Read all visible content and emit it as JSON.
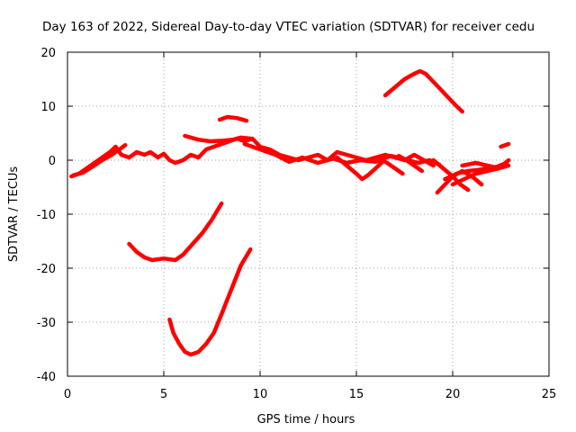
{
  "chart_data": {
    "type": "line",
    "title": "Day 163 of 2022, Sidereal Day-to-day VTEC variation (SDTVAR) for receiver cedu",
    "xlabel": "GPS time / hours",
    "ylabel": "SDTVAR / TECUs",
    "xlim": [
      0,
      25
    ],
    "ylim": [
      -40,
      20
    ],
    "x_ticks": [
      "0",
      "5",
      "10",
      "15",
      "20",
      "25"
    ],
    "y_ticks": [
      "-40",
      "-30",
      "-20",
      "-10",
      "0",
      "10",
      "20"
    ],
    "grid": true,
    "series_color": "#ff0000",
    "series": [
      {
        "name": "track-main-1",
        "x": [
          0.2,
          0.6,
          1.0,
          1.4,
          1.8,
          2.2,
          2.5,
          2.8,
          3.2,
          3.6,
          4.0,
          4.3,
          4.7,
          5.0,
          5.3,
          5.6,
          6.0,
          6.4,
          6.8,
          7.2,
          7.6,
          8.0,
          8.4,
          8.8,
          9.2,
          9.6,
          10.0,
          10.5,
          11.0,
          11.5,
          12.0,
          12.5,
          13.0,
          13.5,
          14.0,
          14.5,
          15.0,
          15.5,
          16.0,
          16.5,
          17.0,
          17.5,
          18.0,
          18.5,
          19.0
        ],
        "y": [
          -3,
          -2.5,
          -1.5,
          -0.5,
          0.5,
          1.5,
          2.5,
          1,
          0.5,
          1.5,
          1.0,
          1.5,
          0.5,
          1.2,
          0,
          -0.5,
          0,
          1,
          0.5,
          2,
          2.5,
          3,
          3.5,
          4,
          3.5,
          4,
          2.5,
          2,
          1,
          0.5,
          0,
          0.5,
          1,
          0,
          1.5,
          1,
          0.5,
          0,
          0.5,
          1,
          0.5,
          0,
          1,
          0,
          -1
        ]
      },
      {
        "name": "track-main-2",
        "x": [
          0.3,
          0.8,
          1.3,
          1.8,
          2.3,
          2.7,
          3.0
        ],
        "y": [
          -2.8,
          -2.3,
          -1.2,
          0,
          1,
          2,
          2.8
        ]
      },
      {
        "name": "track-main-3",
        "x": [
          9.2,
          10.0,
          10.8,
          11.5,
          12.2,
          13.0,
          13.8,
          14.5,
          15.2,
          16.0,
          16.8,
          17.5,
          18.2,
          18.8,
          19.3
        ],
        "y": [
          3,
          2,
          1,
          -0.3,
          0.5,
          -0.5,
          0.3,
          -0.5,
          0,
          -0.3,
          0.8,
          0.2,
          -0.5,
          0,
          -0.8
        ]
      },
      {
        "name": "track-upper-1",
        "x": [
          6.1,
          6.8,
          7.4,
          8.0,
          8.6,
          9.0,
          9.5
        ],
        "y": [
          4.5,
          3.8,
          3.5,
          3.6,
          3.8,
          4.2,
          4.0
        ]
      },
      {
        "name": "track-upper-2",
        "x": [
          7.9,
          8.3,
          8.8,
          9.3
        ],
        "y": [
          7.5,
          8,
          7.8,
          7.3
        ]
      },
      {
        "name": "track-peak",
        "x": [
          16.5,
          17.0,
          17.5,
          18.0,
          18.3,
          18.6,
          19.0,
          19.4,
          19.8,
          20.2,
          20.5
        ],
        "y": [
          12,
          13.5,
          15,
          16,
          16.5,
          16,
          14.5,
          13,
          11.5,
          10,
          9
        ]
      },
      {
        "name": "track-right-1",
        "x": [
          14.0,
          14.5,
          15.0,
          15.3,
          15.6,
          16.0,
          16.3
        ],
        "y": [
          0.5,
          -1,
          -2.5,
          -3.5,
          -2.8,
          -1.5,
          -0.5
        ]
      },
      {
        "name": "track-right-2",
        "x": [
          16.3,
          16.6,
          17.0,
          17.4
        ],
        "y": [
          0,
          -0.5,
          -1.5,
          -2.5
        ]
      },
      {
        "name": "track-right-3",
        "x": [
          17.2,
          17.6,
          18.0,
          18.4
        ],
        "y": [
          0.8,
          0,
          -1,
          -2
        ]
      },
      {
        "name": "track-right-4",
        "x": [
          19.0,
          19.5,
          20.0,
          20.4,
          20.8
        ],
        "y": [
          0,
          -1.5,
          -3,
          -4.5,
          -5.5
        ]
      },
      {
        "name": "track-right-5",
        "x": [
          19.2,
          19.6,
          20.0,
          20.5,
          21.0,
          21.5
        ],
        "y": [
          -6,
          -4.5,
          -3,
          -2,
          -3,
          -4.5
        ]
      },
      {
        "name": "track-right-6",
        "x": [
          19.6,
          20.2,
          20.8,
          21.3,
          21.8,
          22.3,
          22.8
        ],
        "y": [
          -3.5,
          -2.5,
          -2,
          -1.8,
          -1.5,
          -1.2,
          -0.5
        ]
      },
      {
        "name": "track-right-7",
        "x": [
          20.5,
          21.2,
          21.8,
          22.4,
          22.9
        ],
        "y": [
          -1,
          -0.5,
          -1,
          -1.5,
          -1
        ]
      },
      {
        "name": "track-right-8",
        "x": [
          20.0,
          20.6,
          21.2,
          21.8,
          22.4,
          22.9
        ],
        "y": [
          -4.5,
          -3.5,
          -2.5,
          -2,
          -1.5,
          0
        ]
      },
      {
        "name": "track-right-9",
        "x": [
          22.5,
          22.9
        ],
        "y": [
          2.5,
          3
        ]
      },
      {
        "name": "track-low-1",
        "x": [
          3.2,
          3.6,
          4.0,
          4.4,
          5.0,
          5.6,
          6.0,
          6.5,
          7.0,
          7.5,
          8.0
        ],
        "y": [
          -15.5,
          -17,
          -18,
          -18.5,
          -18.2,
          -18.5,
          -17.5,
          -15.5,
          -13.5,
          -11,
          -8
        ]
      },
      {
        "name": "track-low-2",
        "x": [
          5.3,
          5.5,
          5.8,
          6.1,
          6.4,
          6.8,
          7.2,
          7.6,
          8.0,
          8.5,
          9.0,
          9.5
        ],
        "y": [
          -29.5,
          -32,
          -34,
          -35.5,
          -36,
          -35.5,
          -34,
          -32,
          -28.5,
          -24,
          -19.5,
          -16.5
        ]
      }
    ]
  }
}
